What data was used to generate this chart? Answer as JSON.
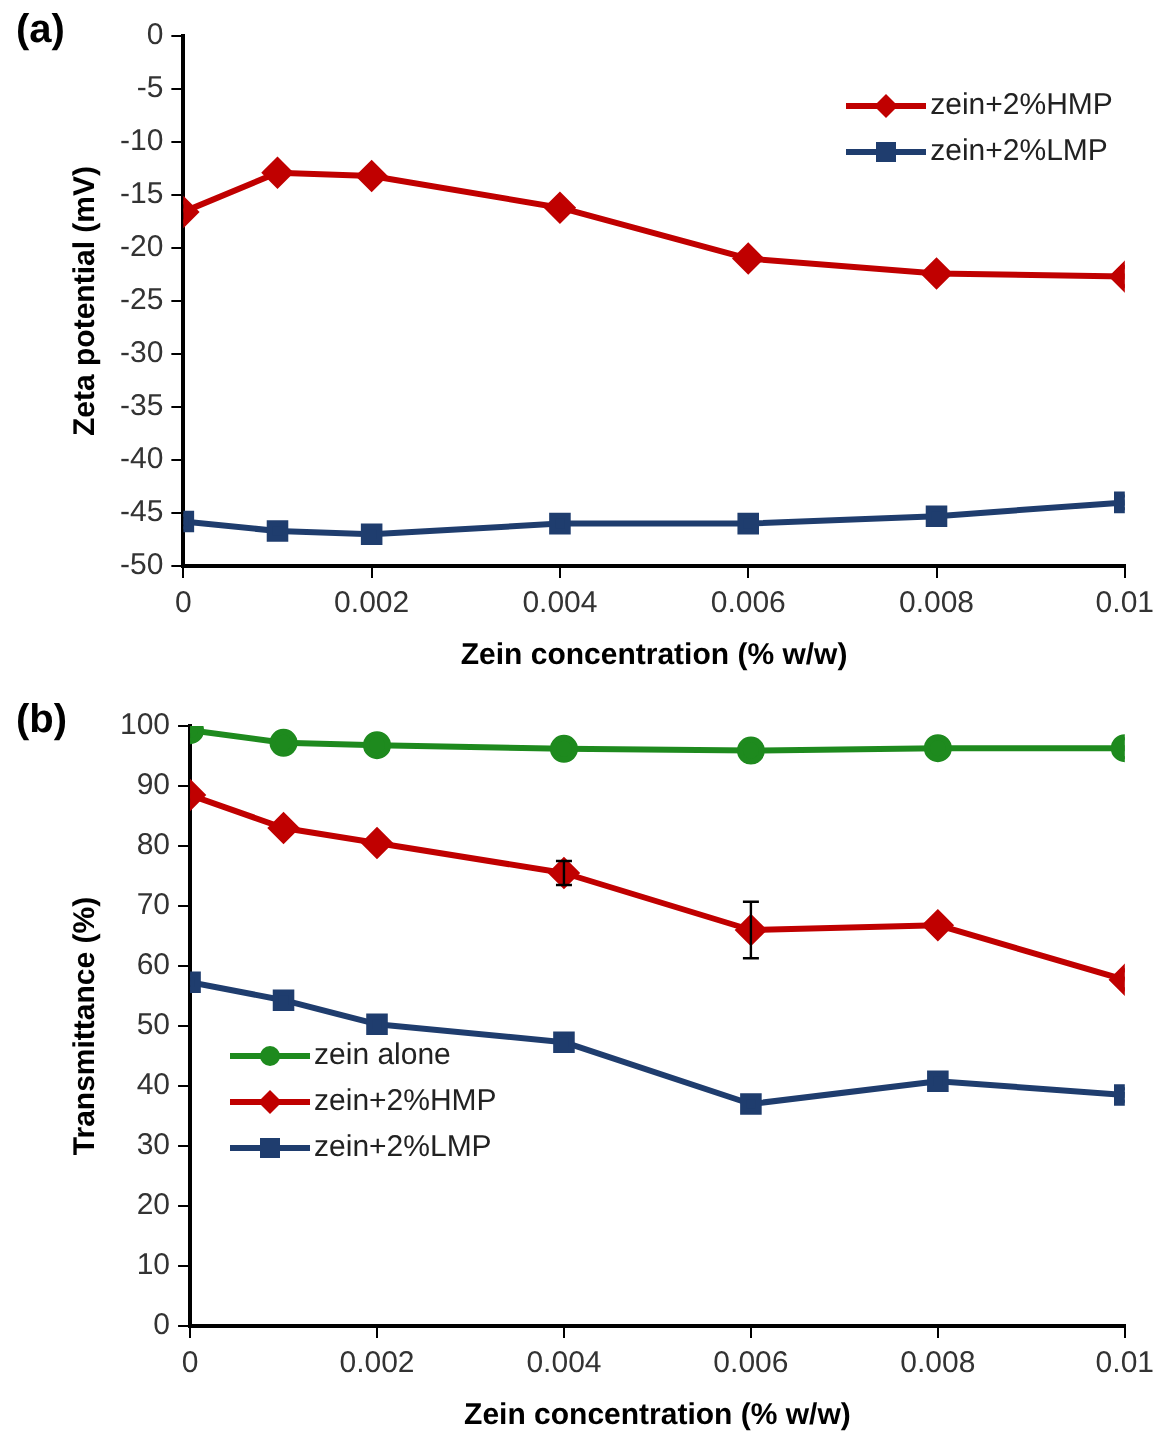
{
  "chart_data": [
    {
      "type": "line",
      "title": "(a)",
      "xlabel": "Zein concentration (% w/w)",
      "ylabel": "Zeta potential (mV)",
      "x": [
        0,
        0.001,
        0.002,
        0.004,
        0.006,
        0.008,
        0.01
      ],
      "series": [
        {
          "name": "zein+2%HMP",
          "color": "#c00000",
          "marker": "diamond",
          "values": [
            -16.6,
            -12.9,
            -13.2,
            -16.2,
            -21,
            -22.4,
            -22.7
          ]
        },
        {
          "name": "zein+2%LMP",
          "color": "#1f3d6e",
          "marker": "square",
          "values": [
            -45.8,
            -46.7,
            -47,
            -46,
            -46,
            -45.3,
            -44
          ]
        }
      ],
      "xlim": [
        0,
        0.01
      ],
      "xticks": [
        0,
        0.002,
        0.004,
        0.006,
        0.008,
        0.01
      ],
      "ylim": [
        -50,
        0
      ],
      "yticks": [
        -50,
        -45,
        -40,
        -35,
        -30,
        -25,
        -20,
        -15,
        -10,
        -5,
        0
      ],
      "grid": false,
      "legend": "top right"
    },
    {
      "type": "line",
      "title": "(b)",
      "xlabel": "Zein concentration (% w/w)",
      "ylabel": "Transmittance (%)",
      "x": [
        0,
        0.001,
        0.002,
        0.004,
        0.006,
        0.008,
        0.01
      ],
      "series": [
        {
          "name": "zein alone",
          "color": "#1e8a1e",
          "marker": "circle",
          "values": [
            99.3,
            97.2,
            96.8,
            96.2,
            95.9,
            96.3,
            96.3
          ]
        },
        {
          "name": "zein+2%HMP",
          "color": "#c00000",
          "marker": "diamond",
          "values": [
            88.5,
            83,
            80.5,
            75.5,
            66,
            66.8,
            57.7
          ],
          "errors": [
            null,
            null,
            null,
            2,
            4.7,
            null,
            null
          ]
        },
        {
          "name": "zein+2%LMP",
          "color": "#1f3d6e",
          "marker": "square",
          "values": [
            57.3,
            54.3,
            50.3,
            47.3,
            37,
            40.8,
            38.5
          ]
        }
      ],
      "xlim": [
        0,
        0.01
      ],
      "xticks": [
        0,
        0.002,
        0.004,
        0.006,
        0.008,
        0.01
      ],
      "ylim": [
        0,
        100
      ],
      "yticks": [
        0,
        10,
        20,
        30,
        40,
        50,
        60,
        70,
        80,
        90,
        100
      ],
      "grid": false,
      "legend": "bottom left"
    }
  ]
}
